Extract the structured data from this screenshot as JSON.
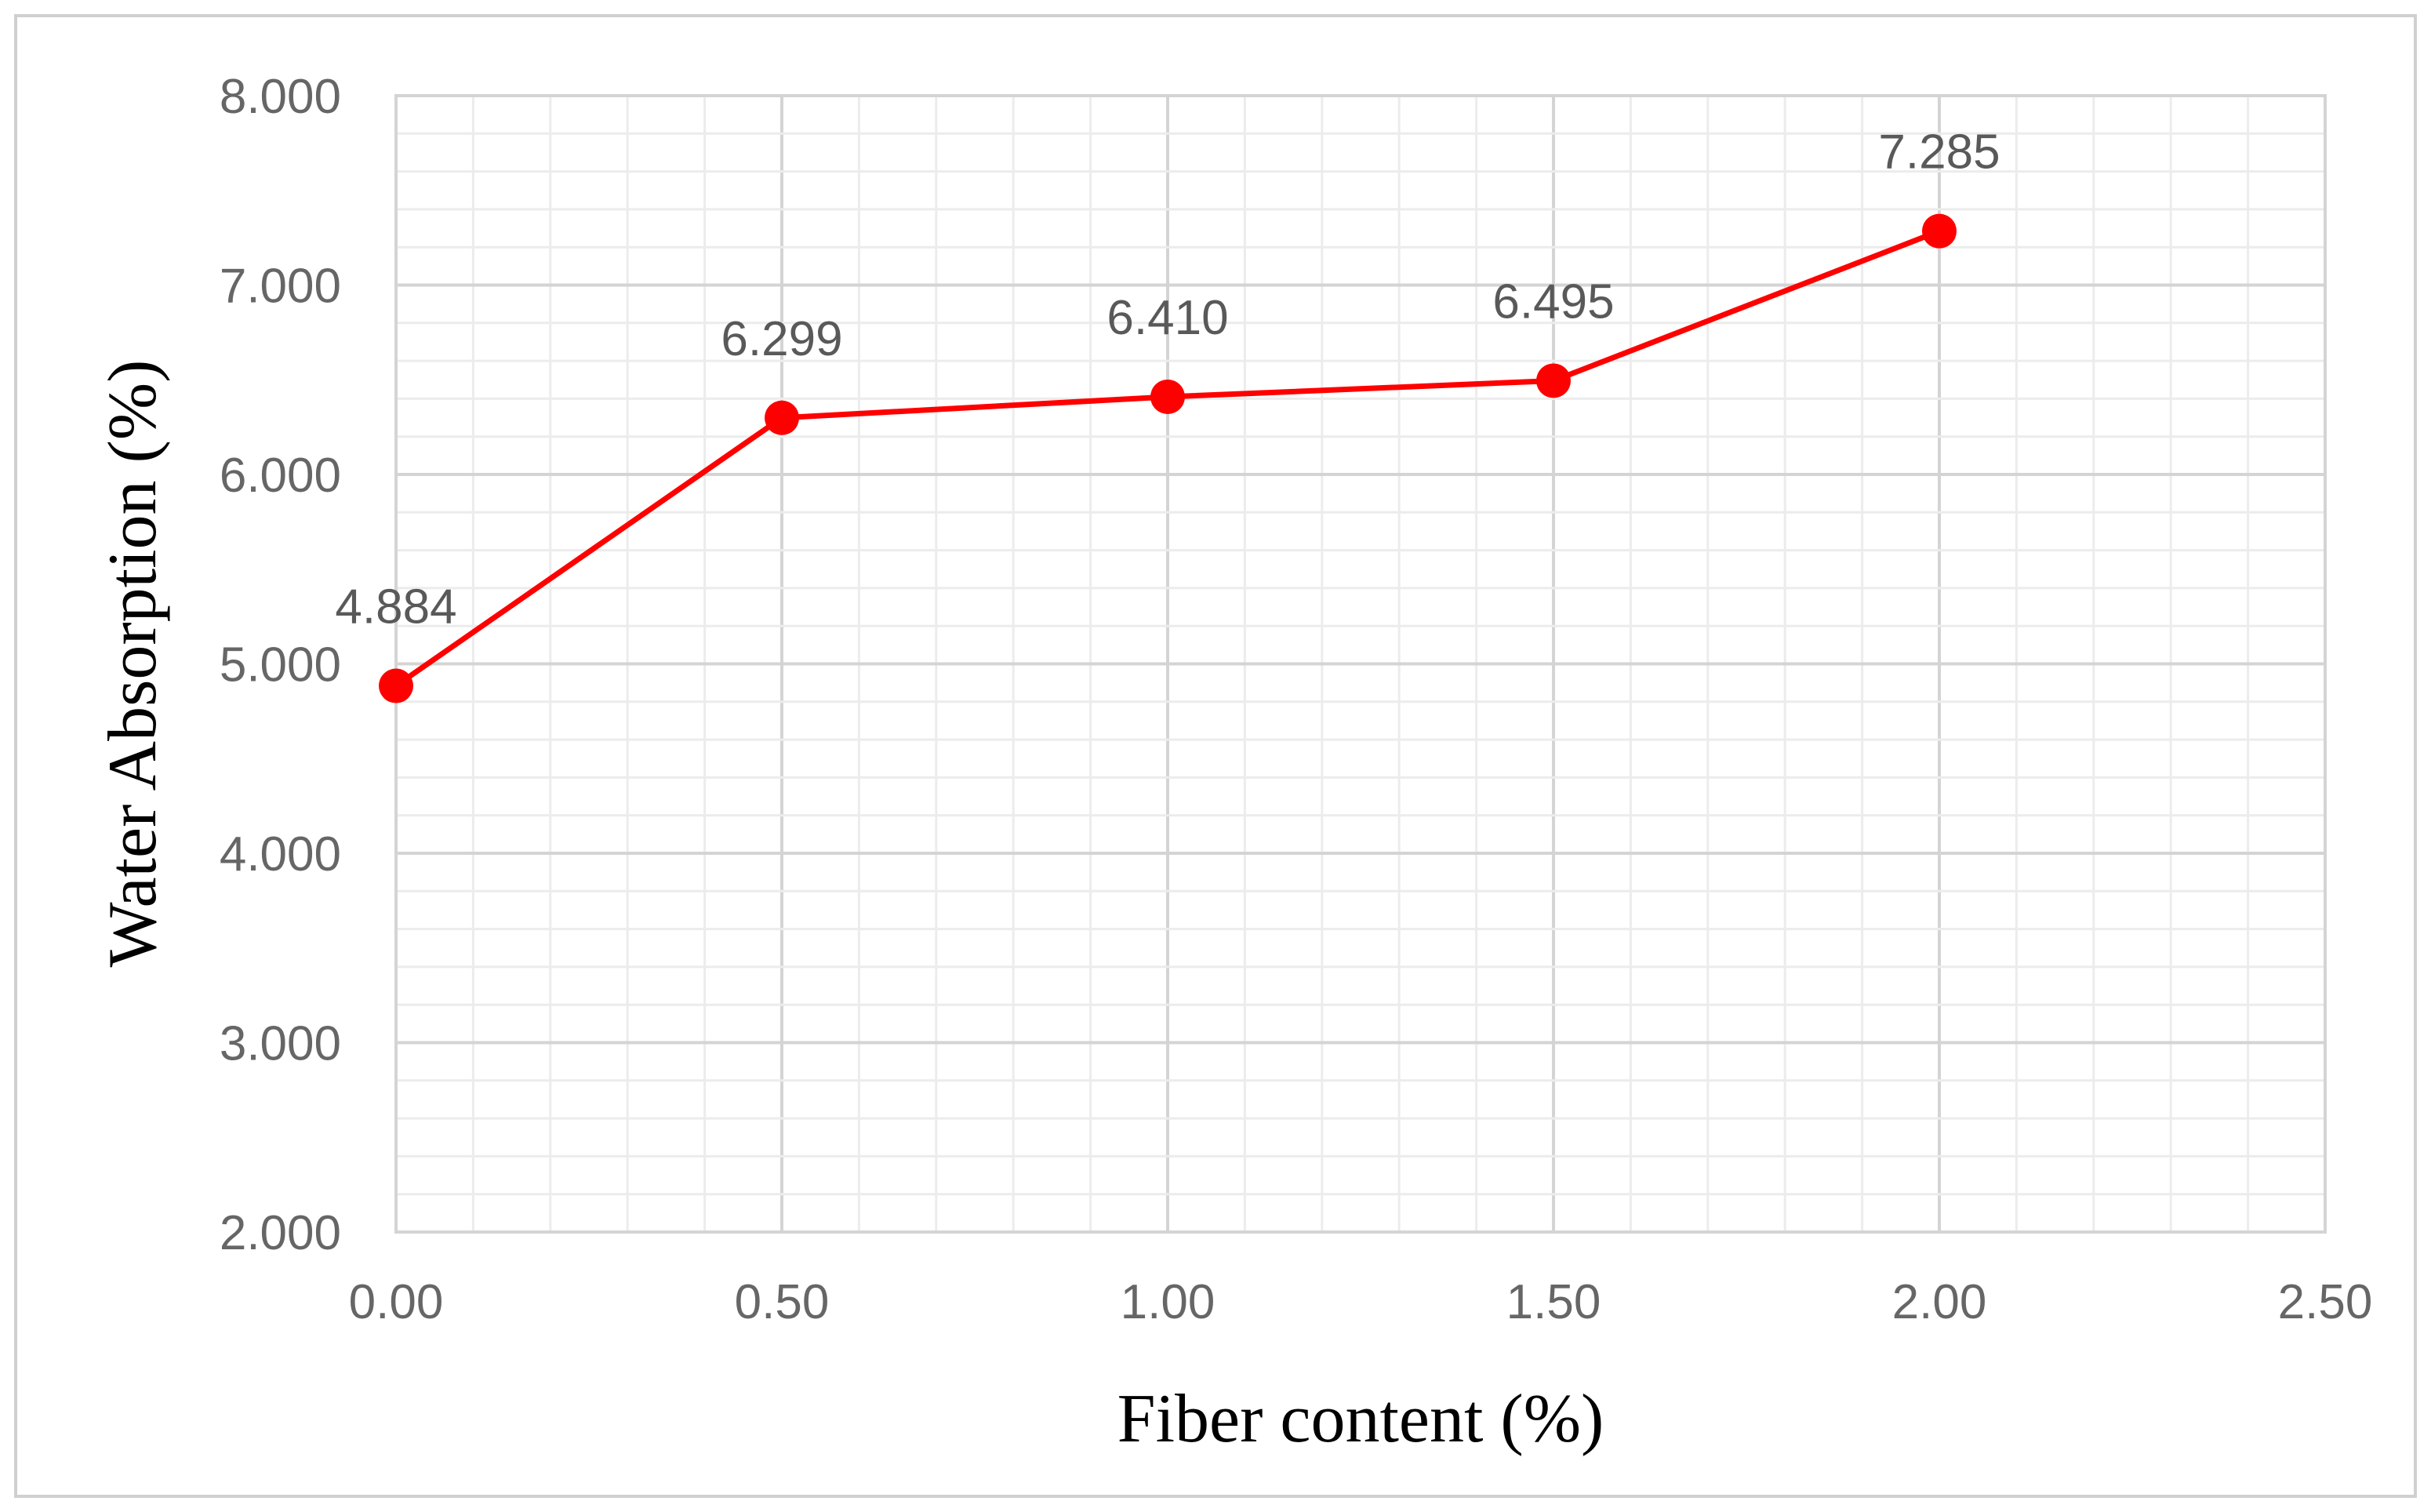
{
  "chart_data": {
    "type": "line",
    "title": "",
    "xlabel": "Fiber content (%)",
    "ylabel": "Water Absorption (%)",
    "xlim": [
      0,
      2.5
    ],
    "ylim": [
      2,
      8
    ],
    "x_ticks": [
      "0.00",
      "0.50",
      "1.00",
      "1.50",
      "2.00",
      "2.50"
    ],
    "y_ticks": [
      "2.000",
      "3.000",
      "4.000",
      "5.000",
      "6.000",
      "7.000",
      "8.000"
    ],
    "grid": true,
    "legend": "none",
    "series": [
      {
        "x": [
          0,
          0.5,
          1.0,
          1.5,
          2.0
        ],
        "values": [
          4.884,
          6.299,
          6.41,
          6.495,
          7.285
        ],
        "data_labels": [
          "4.884",
          "6.299",
          "6.410",
          "6.495",
          "7.285"
        ],
        "color": "#ff0000"
      }
    ]
  }
}
